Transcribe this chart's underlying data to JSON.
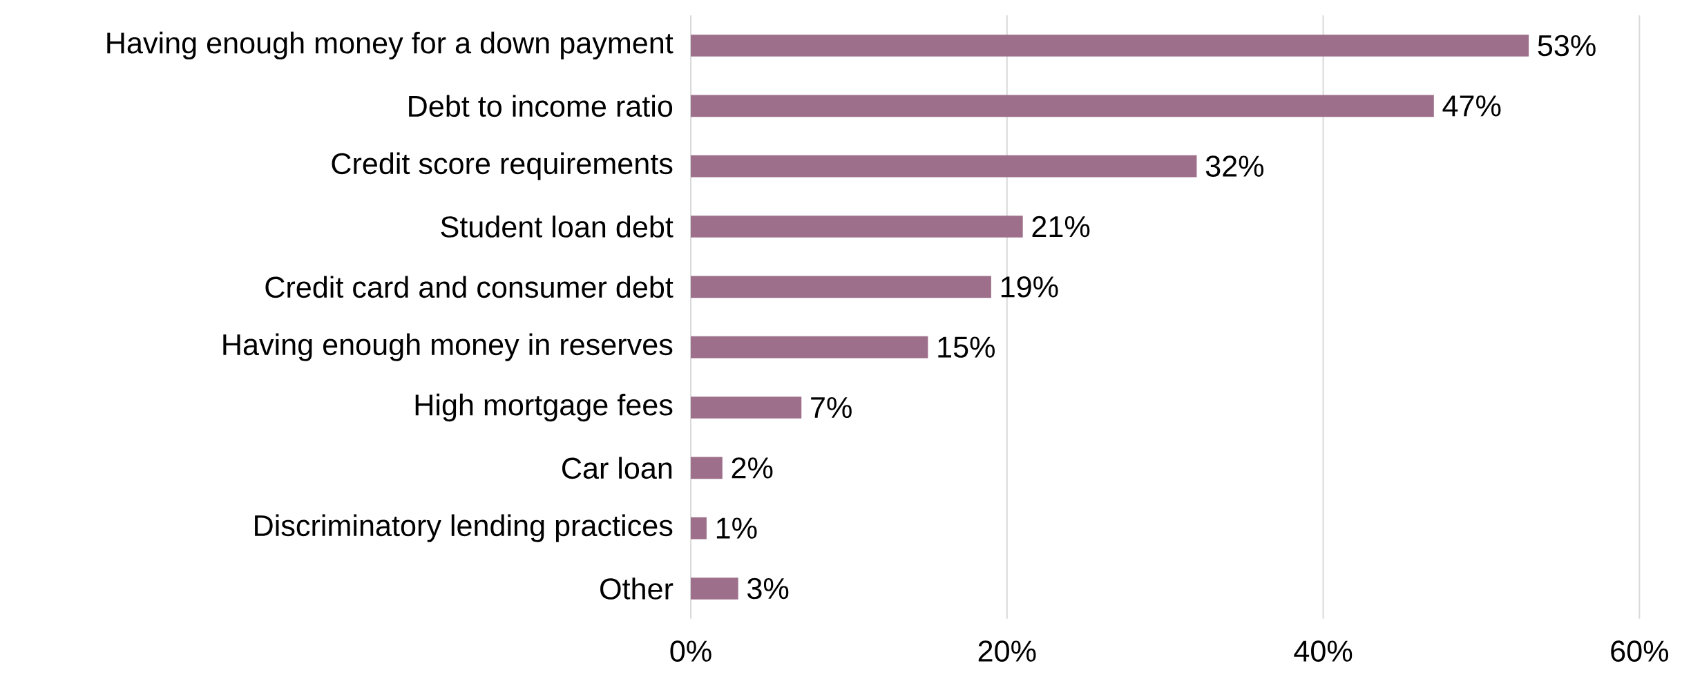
{
  "chart_data": {
    "type": "bar",
    "orientation": "horizontal",
    "categories": [
      "Having enough money for a down payment",
      "Debt to income ratio",
      "Credit score requirements",
      "Student loan debt",
      "Credit card and consumer debt",
      "Having enough money in reserves",
      "High mortgage fees",
      "Car loan",
      "Discriminatory lending practices",
      "Other"
    ],
    "values": [
      53,
      47,
      32,
      21,
      19,
      15,
      7,
      2,
      1,
      3
    ],
    "value_labels": [
      "53%",
      "47%",
      "32%",
      "21%",
      "19%",
      "15%",
      "7%",
      "2%",
      "1%",
      "3%"
    ],
    "color": "#9e6f8b",
    "xlim": [
      0,
      60
    ],
    "xticks": [
      {
        "value": 0,
        "label": "0%"
      },
      {
        "value": 20,
        "label": "20%"
      },
      {
        "value": 40,
        "label": "40%"
      },
      {
        "value": 60,
        "label": "60%"
      }
    ],
    "grid": "x"
  }
}
